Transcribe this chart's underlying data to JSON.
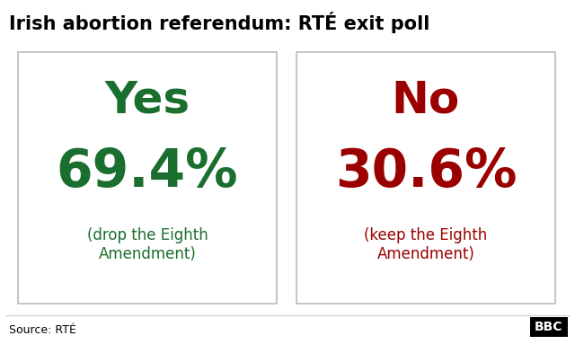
{
  "title": "Irish abortion referendum: RTÉ exit poll",
  "title_fontsize": 15,
  "title_color": "#000000",
  "bg_color": "#ffffff",
  "box_border_color": "#bbbbbb",
  "yes_label": "Yes",
  "yes_pct": "69.4%",
  "yes_sub": "(drop the Eighth\nAmendment)",
  "yes_color": "#1a6e2e",
  "no_label": "No",
  "no_pct": "30.6%",
  "no_sub": "(keep the Eighth\nAmendment)",
  "no_color": "#9b0000",
  "source_text": "Source: RTÉ",
  "source_fontsize": 9,
  "bbc_text": "BBC",
  "bbc_fontsize": 10,
  "label_fontsize": 36,
  "pct_fontsize": 42,
  "sub_fontsize": 12
}
